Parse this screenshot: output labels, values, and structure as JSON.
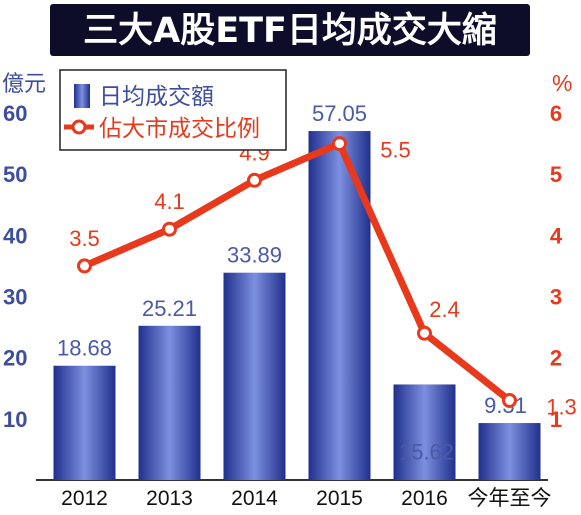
{
  "chart_data": {
    "type": "bar",
    "title": "三大A股ETF日均成交大縮",
    "categories": [
      "2012",
      "2013",
      "2014",
      "2015",
      "2016",
      "今年至今"
    ],
    "ylabel_left": "億元",
    "ylabel_right": "%",
    "ylim_left": [
      0,
      60
    ],
    "ylim_right": [
      0,
      6
    ],
    "left_ticks": [
      "10",
      "20",
      "30",
      "40",
      "50",
      "60"
    ],
    "right_ticks": [
      "1",
      "2",
      "3",
      "4",
      "5",
      "6"
    ],
    "series": [
      {
        "name": "日均成交額",
        "type": "bar",
        "axis": "left",
        "values": [
          18.68,
          25.21,
          33.89,
          57.05,
          15.62,
          9.31
        ],
        "labels": [
          "18.68",
          "25.21",
          "33.89",
          "57.05",
          "15.62",
          "9.31"
        ]
      },
      {
        "name": "佔大市成交比例",
        "type": "line",
        "axis": "right",
        "values": [
          3.5,
          4.1,
          4.9,
          5.5,
          2.4,
          1.3
        ],
        "labels": [
          "3.5",
          "4.1",
          "4.9",
          "5.5",
          "2.4",
          "1.3"
        ]
      }
    ],
    "legend": "top-left",
    "grid": false,
    "colors": {
      "title_bg": "#0d0d2a",
      "title_text": "#ffffff",
      "bar_light": "#7d8fe0",
      "bar_dark": "#20308c",
      "line": "#e8391d",
      "left_axis_text": "#3d4ea0",
      "right_axis_text": "#e8391d",
      "bar_label": "#4a5aa8",
      "line_label": "#e8391d"
    }
  }
}
